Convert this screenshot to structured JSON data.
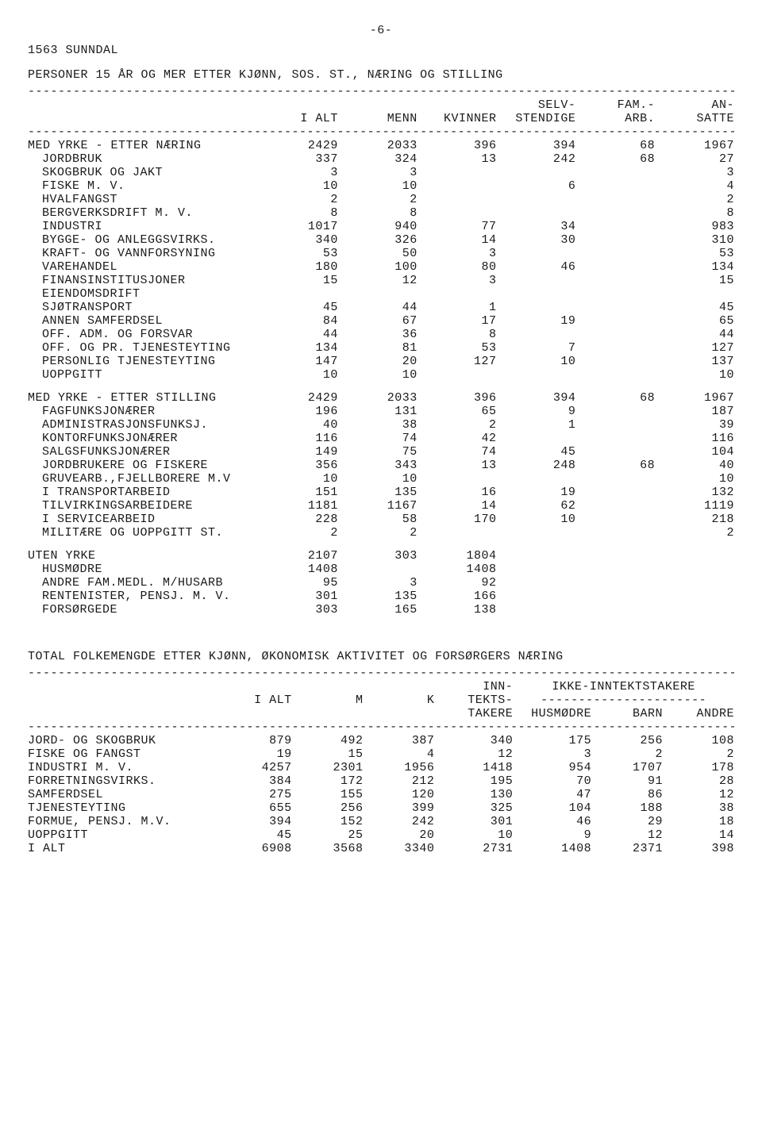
{
  "page_number": "-6-",
  "region": "1563 SUNNDAL",
  "table1": {
    "title": "PERSONER 15 ÅR OG MER ETTER KJØNN, SOS. ST., NÆRING OG STILLING",
    "columns": [
      "I ALT",
      "MENN",
      "KVINNER",
      "SELV-\nSTENDIGE",
      "FAM.-\nARB.",
      "AN-\nSATTE"
    ],
    "sections": [
      {
        "header": {
          "label": "MED YRKE - ETTER NÆRING",
          "v": [
            "2429",
            "2033",
            "396",
            "394",
            "68",
            "1967"
          ]
        },
        "rows": [
          {
            "label": "JORDBRUK",
            "v": [
              "337",
              "324",
              "13",
              "242",
              "68",
              "27"
            ]
          },
          {
            "label": "SKOGBRUK OG JAKT",
            "v": [
              "3",
              "3",
              "",
              "",
              "",
              "3"
            ]
          },
          {
            "label": "FISKE M. V.",
            "v": [
              "10",
              "10",
              "",
              "6",
              "",
              "4"
            ]
          },
          {
            "label": "HVALFANGST",
            "v": [
              "2",
              "2",
              "",
              "",
              "",
              "2"
            ]
          },
          {
            "label": "BERGVERKSDRIFT M. V.",
            "v": [
              "8",
              "8",
              "",
              "",
              "",
              "8"
            ]
          },
          {
            "label": "INDUSTRI",
            "v": [
              "1017",
              "940",
              "77",
              "34",
              "",
              "983"
            ]
          },
          {
            "label": "BYGGE- OG ANLEGGSVIRKS.",
            "v": [
              "340",
              "326",
              "14",
              "30",
              "",
              "310"
            ]
          },
          {
            "label": "KRAFT- OG VANNFORSYNING",
            "v": [
              "53",
              "50",
              "3",
              "",
              "",
              "53"
            ]
          },
          {
            "label": "VAREHANDEL",
            "v": [
              "180",
              "100",
              "80",
              "46",
              "",
              "134"
            ]
          },
          {
            "label": "FINANSINSTITUSJONER",
            "v": [
              "15",
              "12",
              "3",
              "",
              "",
              "15"
            ]
          },
          {
            "label": "EIENDOMSDRIFT",
            "v": [
              "",
              "",
              "",
              "",
              "",
              ""
            ]
          },
          {
            "label": "SJØTRANSPORT",
            "v": [
              "45",
              "44",
              "1",
              "",
              "",
              "45"
            ]
          },
          {
            "label": "ANNEN SAMFERDSEL",
            "v": [
              "84",
              "67",
              "17",
              "19",
              "",
              "65"
            ]
          },
          {
            "label": "OFF. ADM. OG FORSVAR",
            "v": [
              "44",
              "36",
              "8",
              "",
              "",
              "44"
            ]
          },
          {
            "label": "OFF. OG PR. TJENESTEYTING",
            "v": [
              "134",
              "81",
              "53",
              "7",
              "",
              "127"
            ]
          },
          {
            "label": "PERSONLIG TJENESTEYTING",
            "v": [
              "147",
              "20",
              "127",
              "10",
              "",
              "137"
            ]
          },
          {
            "label": "UOPPGITT",
            "v": [
              "10",
              "10",
              "",
              "",
              "",
              "10"
            ]
          }
        ]
      },
      {
        "header": {
          "label": "MED YRKE - ETTER STILLING",
          "v": [
            "2429",
            "2033",
            "396",
            "394",
            "68",
            "1967"
          ]
        },
        "rows": [
          {
            "label": "FAGFUNKSJONÆRER",
            "v": [
              "196",
              "131",
              "65",
              "9",
              "",
              "187"
            ]
          },
          {
            "label": "ADMINISTRASJONSFUNKSJ.",
            "v": [
              "40",
              "38",
              "2",
              "1",
              "",
              "39"
            ]
          },
          {
            "label": "KONTORFUNKSJONÆRER",
            "v": [
              "116",
              "74",
              "42",
              "",
              "",
              "116"
            ]
          },
          {
            "label": "SALGSFUNKSJONÆRER",
            "v": [
              "149",
              "75",
              "74",
              "45",
              "",
              "104"
            ]
          },
          {
            "label": "JORDBRUKERE OG FISKERE",
            "v": [
              "356",
              "343",
              "13",
              "248",
              "68",
              "40"
            ]
          },
          {
            "label": "GRUVEARB.,FJELLBORERE M.V",
            "v": [
              "10",
              "10",
              "",
              "",
              "",
              "10"
            ]
          },
          {
            "label": "I TRANSPORTARBEID",
            "v": [
              "151",
              "135",
              "16",
              "19",
              "",
              "132"
            ]
          },
          {
            "label": "TILVIRKINGSARBEIDERE",
            "v": [
              "1181",
              "1167",
              "14",
              "62",
              "",
              "1119"
            ]
          },
          {
            "label": "I SERVICEARBEID",
            "v": [
              "228",
              "58",
              "170",
              "10",
              "",
              "218"
            ]
          },
          {
            "label": "MILITÆRE OG UOPPGITT ST.",
            "v": [
              "2",
              "2",
              "",
              "",
              "",
              "2"
            ]
          }
        ]
      },
      {
        "header": {
          "label": "UTEN YRKE",
          "v": [
            "2107",
            "303",
            "1804",
            "",
            "",
            ""
          ]
        },
        "rows": [
          {
            "label": "HUSMØDRE",
            "v": [
              "1408",
              "",
              "1408",
              "",
              "",
              ""
            ]
          },
          {
            "label": "ANDRE FAM.MEDL. M/HUSARB",
            "v": [
              "95",
              "3",
              "92",
              "",
              "",
              ""
            ]
          },
          {
            "label": "RENTENISTER, PENSJ. M. V.",
            "v": [
              "301",
              "135",
              "166",
              "",
              "",
              ""
            ]
          },
          {
            "label": "FORSØRGEDE",
            "v": [
              "303",
              "165",
              "138",
              "",
              "",
              ""
            ]
          }
        ]
      }
    ]
  },
  "table2": {
    "title": "TOTAL FOLKEMENGDE ETTER KJØNN, ØKONOMISK AKTIVITET OG FORSØRGERS NÆRING",
    "columns_top": [
      "I ALT",
      "M",
      "K",
      "INN-\nTEKTS-\nTAKERE"
    ],
    "group_label": "IKKE-INNTEKTSTAKERE",
    "group_cols": [
      "HUSMØDRE",
      "BARN",
      "ANDRE"
    ],
    "rows": [
      {
        "label": "JORD- OG SKOGBRUK",
        "v": [
          "879",
          "492",
          "387",
          "340",
          "175",
          "256",
          "108"
        ]
      },
      {
        "label": "FISKE OG FANGST",
        "v": [
          "19",
          "15",
          "4",
          "12",
          "3",
          "2",
          "2"
        ]
      },
      {
        "label": "INDUSTRI M. V.",
        "v": [
          "4257",
          "2301",
          "1956",
          "1418",
          "954",
          "1707",
          "178"
        ]
      },
      {
        "label": "FORRETNINGSVIRKS.",
        "v": [
          "384",
          "172",
          "212",
          "195",
          "70",
          "91",
          "28"
        ]
      },
      {
        "label": "SAMFERDSEL",
        "v": [
          "275",
          "155",
          "120",
          "130",
          "47",
          "86",
          "12"
        ]
      },
      {
        "label": "TJENESTEYTING",
        "v": [
          "655",
          "256",
          "399",
          "325",
          "104",
          "188",
          "38"
        ]
      },
      {
        "label": "FORMUE, PENSJ. M.V.",
        "v": [
          "394",
          "152",
          "242",
          "301",
          "46",
          "29",
          "18"
        ]
      },
      {
        "label": "UOPPGITT",
        "v": [
          "45",
          "25",
          "20",
          "10",
          "9",
          "12",
          "14"
        ]
      },
      {
        "label": "I ALT",
        "v": [
          "6908",
          "3568",
          "3340",
          "2731",
          "1408",
          "2371",
          "398"
        ]
      }
    ]
  },
  "dash70": "----------------------------------------------------------------------------------------------",
  "dash22": "----------------------"
}
